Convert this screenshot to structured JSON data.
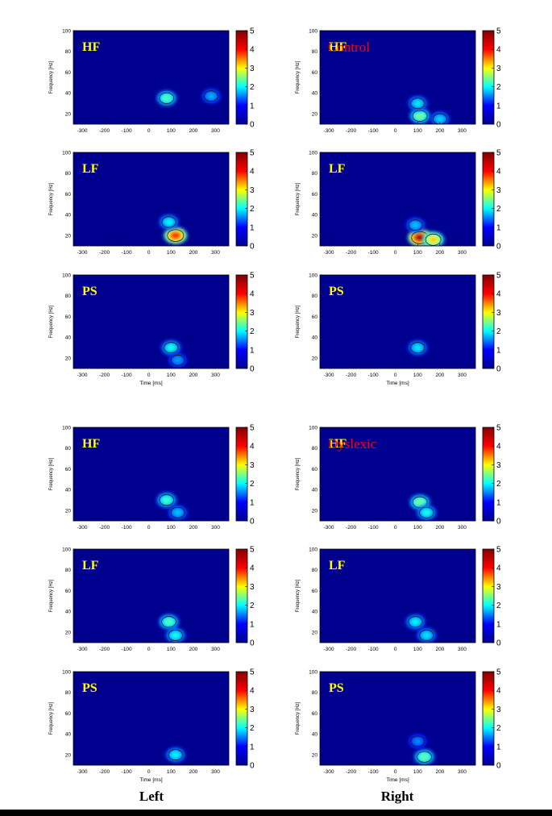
{
  "figure": {
    "column_labels": [
      "Left",
      "Right"
    ],
    "group_labels": [
      "Control",
      "Dyslexic"
    ],
    "colors": {
      "background": "#00008f",
      "panel_label": "#ffff00",
      "group_label": "#ff0000",
      "colormap": [
        "#00008f",
        "#0000ff",
        "#00ffff",
        "#ffff00",
        "#ff0000",
        "#800000"
      ]
    }
  },
  "chart_data": {
    "type": "heatmap",
    "description_axes": {
      "xlabel": "Time [ms]",
      "ylabel": "Frequency [Hz]",
      "x_ticks": [
        -300,
        -200,
        -100,
        0,
        100,
        200,
        300
      ],
      "y_ticks": [
        20,
        40,
        60,
        80,
        100
      ],
      "xlim": [
        -340,
        360
      ],
      "ylim": [
        10,
        100
      ],
      "colorbar_ticks": [
        0,
        1,
        2,
        3,
        4,
        5
      ],
      "clim": [
        0,
        5
      ],
      "colormap": "jet"
    },
    "panels": [
      {
        "group": "Control",
        "hemisphere": "Left",
        "label": "HF",
        "blobs": [
          {
            "t": 80,
            "f": 35,
            "amp": 2.3
          },
          {
            "t": 280,
            "f": 37,
            "amp": 1.5
          }
        ]
      },
      {
        "group": "Control",
        "hemisphere": "Right",
        "label": "HF",
        "blobs": [
          {
            "t": 110,
            "f": 18,
            "amp": 2.5
          },
          {
            "t": 200,
            "f": 15,
            "amp": 1.7
          },
          {
            "t": 100,
            "f": 30,
            "amp": 1.8
          }
        ]
      },
      {
        "group": "Control",
        "hemisphere": "Left",
        "label": "LF",
        "blobs": [
          {
            "t": 120,
            "f": 20,
            "amp": 4.3
          },
          {
            "t": 90,
            "f": 33,
            "amp": 1.9
          }
        ]
      },
      {
        "group": "Control",
        "hemisphere": "Right",
        "label": "LF",
        "blobs": [
          {
            "t": 110,
            "f": 18,
            "amp": 4.8
          },
          {
            "t": 170,
            "f": 16,
            "amp": 3.4
          },
          {
            "t": 90,
            "f": 30,
            "amp": 1.6
          }
        ]
      },
      {
        "group": "Control",
        "hemisphere": "Left",
        "label": "PS",
        "blobs": [
          {
            "t": 100,
            "f": 30,
            "amp": 2.0
          },
          {
            "t": 130,
            "f": 18,
            "amp": 1.4
          }
        ]
      },
      {
        "group": "Control",
        "hemisphere": "Right",
        "label": "PS",
        "blobs": [
          {
            "t": 100,
            "f": 30,
            "amp": 1.8
          }
        ]
      },
      {
        "group": "Dyslexic",
        "hemisphere": "Left",
        "label": "HF",
        "blobs": [
          {
            "t": 80,
            "f": 30,
            "amp": 2.2
          },
          {
            "t": 130,
            "f": 18,
            "amp": 1.6
          }
        ]
      },
      {
        "group": "Dyslexic",
        "hemisphere": "Right",
        "label": "HF",
        "blobs": [
          {
            "t": 110,
            "f": 28,
            "amp": 2.5
          },
          {
            "t": 140,
            "f": 18,
            "amp": 2.0
          }
        ]
      },
      {
        "group": "Dyslexic",
        "hemisphere": "Left",
        "label": "LF",
        "blobs": [
          {
            "t": 90,
            "f": 30,
            "amp": 2.3
          },
          {
            "t": 120,
            "f": 17,
            "amp": 2.0
          }
        ]
      },
      {
        "group": "Dyslexic",
        "hemisphere": "Right",
        "label": "LF",
        "blobs": [
          {
            "t": 90,
            "f": 30,
            "amp": 1.9
          },
          {
            "t": 140,
            "f": 17,
            "amp": 1.8
          }
        ]
      },
      {
        "group": "Dyslexic",
        "hemisphere": "Left",
        "label": "PS",
        "blobs": [
          {
            "t": 120,
            "f": 20,
            "amp": 1.9
          }
        ]
      },
      {
        "group": "Dyslexic",
        "hemisphere": "Right",
        "label": "PS",
        "blobs": [
          {
            "t": 130,
            "f": 18,
            "amp": 2.4
          },
          {
            "t": 100,
            "f": 33,
            "amp": 1.3
          }
        ]
      }
    ]
  }
}
